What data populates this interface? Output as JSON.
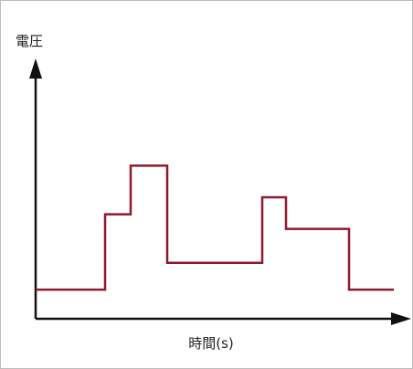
{
  "labels": {
    "y_axis": "電圧",
    "x_axis": "時間(s)"
  },
  "colors": {
    "signal": "#8e1a2e",
    "axis": "#111111",
    "frame_border": "#bdbdbd"
  },
  "signal_levels": [
    0.12,
    0.43,
    0.63,
    0.23,
    0.5,
    0.37,
    0.12
  ]
}
